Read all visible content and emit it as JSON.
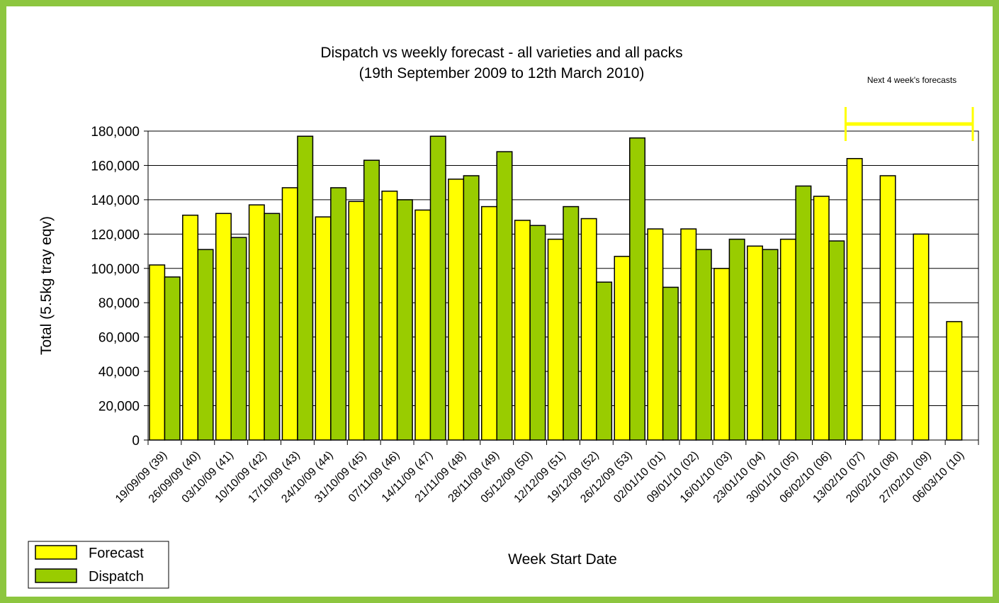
{
  "colors": {
    "frame": "#8dc63f",
    "forecast": "#ffff00",
    "dispatch": "#99cc00",
    "bracket": "#ffff00"
  },
  "annotation": "Next 4 week's forecasts",
  "chart_data": {
    "type": "bar",
    "title": "Dispatch vs weekly forecast - all varieties and all packs",
    "subtitle": "(19th September 2009 to 12th March 2010)",
    "xlabel": "Week Start Date",
    "ylabel": "Total (5.5kg tray eqv)",
    "ylim": [
      0,
      180000
    ],
    "yticks": [
      "0",
      "20,000",
      "40,000",
      "60,000",
      "80,000",
      "100,000",
      "120,000",
      "140,000",
      "160,000",
      "180,000"
    ],
    "grid": true,
    "legend_position": "bottom-left",
    "categories": [
      "19/09/09 (39)",
      "26/09/09 (40)",
      "03/10/09 (41)",
      "10/10/09 (42)",
      "17/10/09 (43)",
      "24/10/09 (44)",
      "31/10/09 (45)",
      "07/11/09 (46)",
      "14/11/09 (47)",
      "21/11/09 (48)",
      "28/11/09 (49)",
      "05/12/09 (50)",
      "12/12/09 (51)",
      "19/12/09 (52)",
      "26/12/09 (53)",
      "02/01/10 (01)",
      "09/01/10 (02)",
      "16/01/10 (03)",
      "23/01/10 (04)",
      "30/01/10 (05)",
      "06/02/10 (06)",
      "13/02/10 (07)",
      "20/02/10 (08)",
      "27/02/10 (09)",
      "06/03/10 (10)"
    ],
    "series": [
      {
        "name": "Forecast",
        "values": [
          102000,
          131000,
          132000,
          137000,
          147000,
          130000,
          139000,
          145000,
          134000,
          152000,
          136000,
          128000,
          117000,
          129000,
          107000,
          123000,
          123000,
          100000,
          113000,
          117000,
          142000,
          164000,
          154000,
          120000,
          69000
        ]
      },
      {
        "name": "Dispatch",
        "values": [
          95000,
          111000,
          118000,
          132000,
          177000,
          147000,
          163000,
          140000,
          177000,
          154000,
          168000,
          125000,
          136000,
          92000,
          176000,
          89000,
          111000,
          117000,
          111000,
          148000,
          116000,
          null,
          null,
          null,
          null
        ]
      }
    ]
  }
}
